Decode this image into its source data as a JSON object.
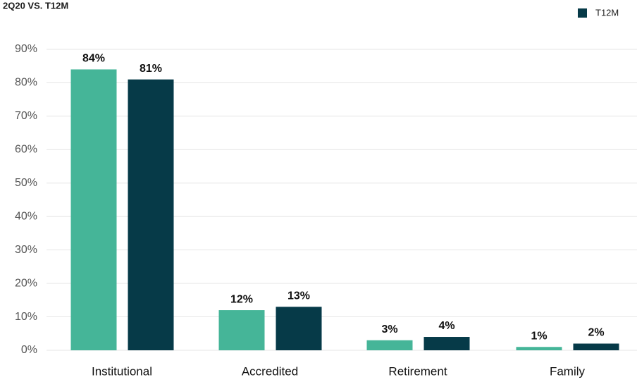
{
  "chart_data": {
    "type": "bar",
    "subtitle": "2Q20 VS. T12M",
    "categories": [
      "Institutional",
      "Accredited",
      "Retirement",
      "Family"
    ],
    "series": [
      {
        "color": "#45b598",
        "values": [
          84,
          12,
          3,
          1
        ],
        "value_labels": [
          "84%",
          "12%",
          "3%",
          "1%"
        ]
      },
      {
        "name": "T12M",
        "color": "#063a48",
        "values": [
          81,
          13,
          4,
          2
        ],
        "value_labels": [
          "81%",
          "13%",
          "4%",
          "2%"
        ]
      }
    ],
    "ylim": [
      0,
      90
    ],
    "yticks": [
      {
        "value": 0,
        "label": "0%"
      },
      {
        "value": 10,
        "label": "10%"
      },
      {
        "value": 20,
        "label": "20%"
      },
      {
        "value": 30,
        "label": "30%"
      },
      {
        "value": 40,
        "label": "40%"
      },
      {
        "value": 50,
        "label": "50%"
      },
      {
        "value": 60,
        "label": "60%"
      },
      {
        "value": 70,
        "label": "70%"
      },
      {
        "value": 80,
        "label": "80%"
      },
      {
        "value": 90,
        "label": "90%"
      }
    ],
    "grid": true
  }
}
